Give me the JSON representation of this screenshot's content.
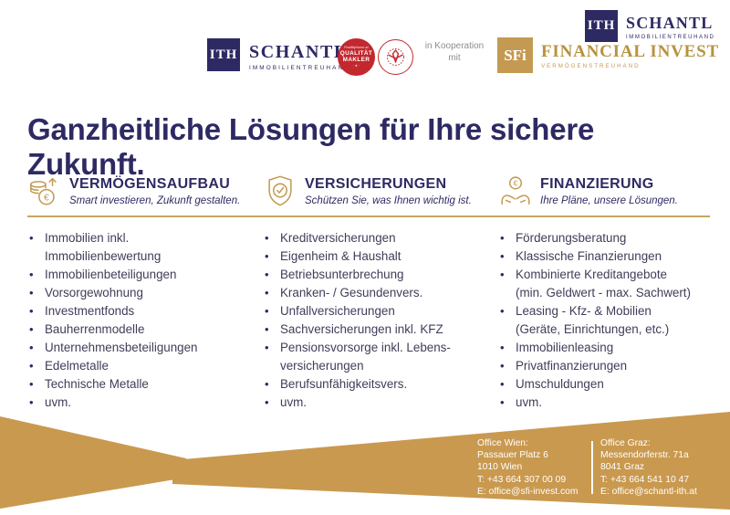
{
  "colors": {
    "navy": "#2d2a63",
    "gold": "#c49a52",
    "gold_footer": "#c9994f",
    "seal_red": "#c2282e",
    "body_text": "#3f3d58"
  },
  "header": {
    "ith_logo": {
      "monogram": "ITH",
      "name": "SCHANTL",
      "tagline": "IMMOBILIENTREUHAND"
    },
    "quality_seal": {
      "top": "FindMyHome.at",
      "line1": "QUALITÄT",
      "line2": "MAKLER",
      "stars": "· ★ ·"
    },
    "cooperation": "in Kooperation mit",
    "sfi_logo": {
      "monogram": "SFi",
      "name": "FINANCIAL INVEST",
      "tagline": "VERMÖGENSTREUHAND"
    }
  },
  "headline": "Ganzheitliche Lösungen für Ihre sichere Zukunft.",
  "columns": [
    {
      "icon": "coins-growth-icon",
      "title": "VERMÖGENSAUFBAU",
      "subtitle": "Smart investieren, Zukunft gestalten.",
      "items": [
        [
          "Immobilien inkl.",
          "Immobilienbewertung"
        ],
        [
          "Immobilienbeteiligungen"
        ],
        [
          "Vorsorgewohnung"
        ],
        [
          "Investmentfonds"
        ],
        [
          "Bauherrenmodelle"
        ],
        [
          "Unternehmensbeteiligungen"
        ],
        [
          "Edelmetalle"
        ],
        [
          "Technische Metalle"
        ],
        [
          "uvm."
        ]
      ]
    },
    {
      "icon": "shield-check-icon",
      "title": "VERSICHERUNGEN",
      "subtitle": "Schützen Sie, was Ihnen wichtig ist.",
      "items": [
        [
          "Kreditversicherungen"
        ],
        [
          "Eigenheim & Haushalt"
        ],
        [
          "Betriebsunterbrechung"
        ],
        [
          "Kranken- / Gesundenvers."
        ],
        [
          "Unfallversicherungen"
        ],
        [
          "Sachversicherungen inkl. KFZ"
        ],
        [
          "Pensionsvorsorge inkl. Lebens-",
          "versicherungen"
        ],
        [
          "Berufsunfähigkeitsvers."
        ],
        [
          "uvm."
        ]
      ]
    },
    {
      "icon": "hands-euro-icon",
      "title": "FINANZIERUNG",
      "subtitle": "Ihre Pläne, unsere Lösungen.",
      "items": [
        [
          "Förderungsberatung"
        ],
        [
          "Klassische Finanzierungen"
        ],
        [
          "Kombinierte Kreditangebote",
          "(min. Geldwert - max. Sachwert)"
        ],
        [
          "Leasing - Kfz- & Mobilien",
          "(Geräte, Einrichtungen, etc.)"
        ],
        [
          "Immobilienleasing"
        ],
        [
          "Privatfinanzierungen"
        ],
        [
          "Umschuldungen"
        ],
        [
          "uvm."
        ]
      ]
    }
  ],
  "footer": {
    "office_wien": [
      "Office Wien:",
      "Passauer Platz 6",
      "1010 Wien",
      "T: +43 664 307 00 09",
      "E: office@sfi-invest.com"
    ],
    "office_graz": [
      "Office Graz:",
      "Messendorferstr. 71a",
      "8041 Graz",
      "T: +43 664 541 10 47",
      "E: office@schantl-ith.at"
    ]
  }
}
